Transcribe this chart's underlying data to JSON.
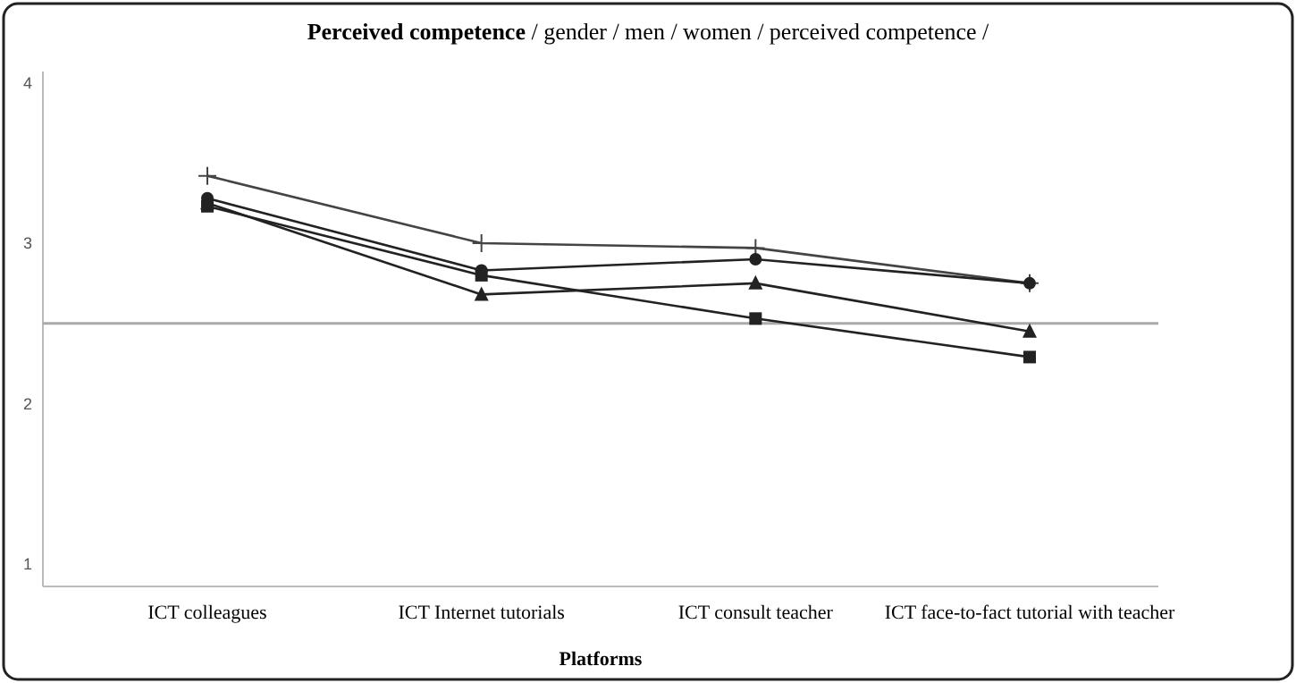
{
  "chart_data": {
    "type": "line",
    "title": "Perceived competence",
    "subtitle": "/ gender / men / women / perceived competence /",
    "xlabel": "Platforms",
    "categories": [
      "ICT colleagues",
      "ICT Internet tutorials",
      "ICT consult teacher",
      "ICT face-to-fact tutorial with teacher"
    ],
    "series": [
      {
        "color": "#444444",
        "marker": "cross",
        "values": [
          3.42,
          3.0,
          2.97,
          2.75
        ]
      },
      {
        "color": "#222222",
        "marker": "circle",
        "values": [
          3.28,
          2.83,
          2.9,
          2.75
        ]
      },
      {
        "color": "#222222",
        "marker": "triangle",
        "values": [
          3.25,
          2.68,
          2.75,
          2.45
        ]
      },
      {
        "color": "#222222",
        "marker": "square",
        "values": [
          3.23,
          2.8,
          2.53,
          2.29
        ]
      }
    ],
    "ylim": [
      0.86,
      4.07
    ],
    "yticks": [
      1,
      2,
      3,
      4
    ],
    "grid": false,
    "ref_lines": [
      {
        "axis": "y",
        "value": 2.5,
        "color": "#aaaaaa"
      }
    ]
  }
}
